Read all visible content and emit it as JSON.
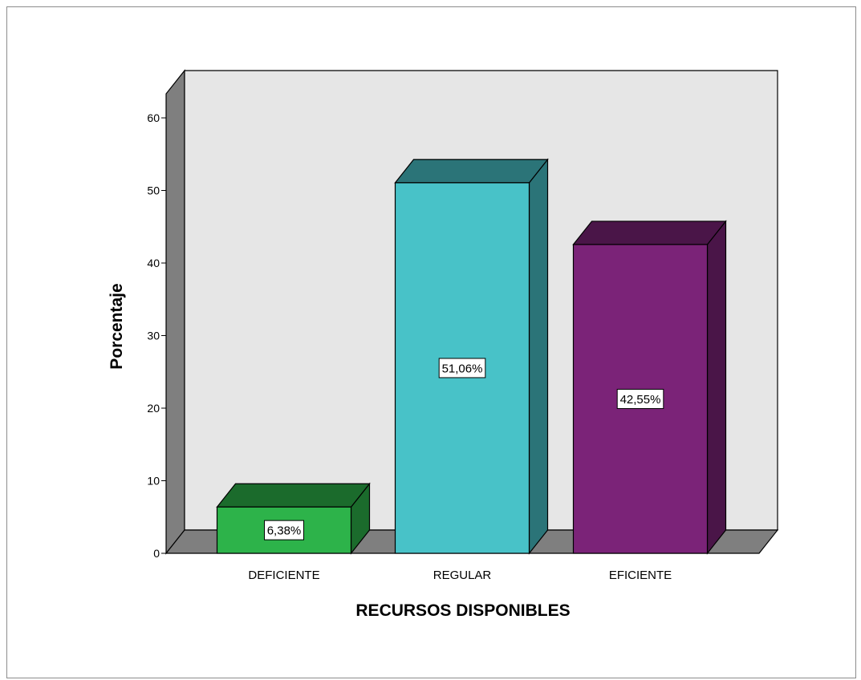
{
  "chart_data": {
    "type": "bar",
    "style": "3d",
    "categories": [
      "DEFICIENTE",
      "REGULAR",
      "EFICIENTE"
    ],
    "values": [
      6.38,
      51.06,
      42.55
    ],
    "data_labels": [
      "6,38%",
      "51,06%",
      "42,55%"
    ],
    "colors": [
      "#2db34a",
      "#48c2c8",
      "#7b2378"
    ],
    "xlabel": "RECURSOS DISPONIBLES",
    "ylabel": "Porcentaje",
    "ylim": [
      0,
      60
    ],
    "yticks": [
      "0",
      "10",
      "20",
      "30",
      "40",
      "50",
      "60"
    ],
    "grid": false,
    "legend": "none"
  }
}
